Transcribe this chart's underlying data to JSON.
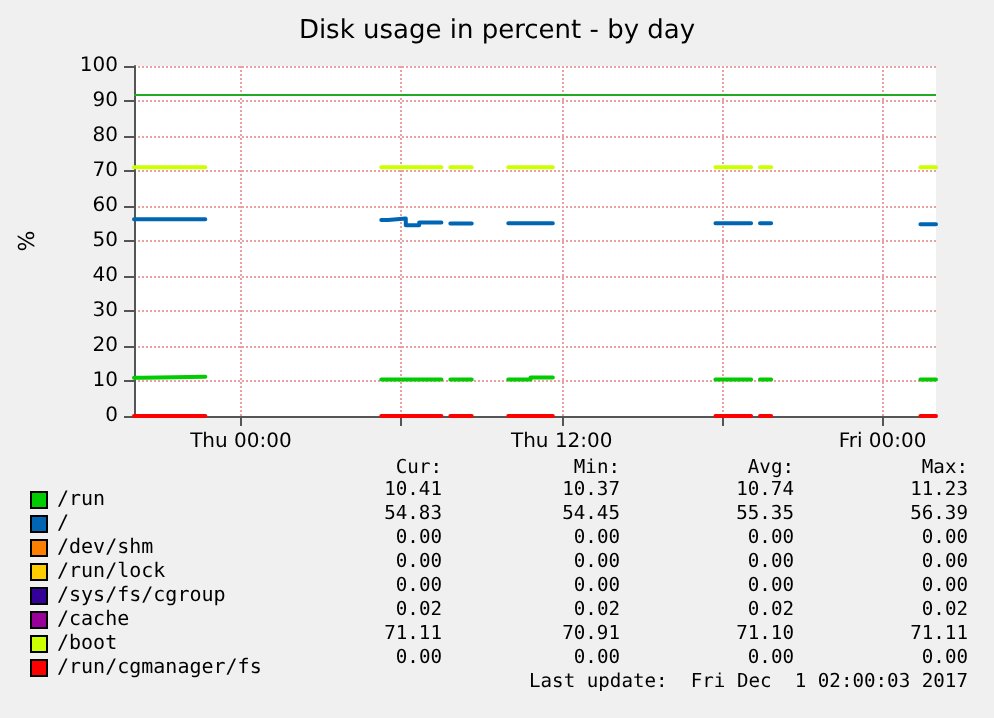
{
  "chart_data": {
    "type": "line",
    "title": "Disk usage in percent - by day",
    "ylabel": "%",
    "x": [
      "2017-11-29T20:00",
      "2017-11-29T22:40",
      "2017-11-30T02:00",
      "2017-11-30T05:15",
      "2017-11-30T07:30",
      "2017-11-30T07:40",
      "2017-11-30T07:50",
      "2017-11-30T08:38",
      "2017-11-30T09:00",
      "2017-11-30T10:00",
      "2017-11-30T11:40",
      "2017-11-30T15:00",
      "2017-11-30T17:45",
      "2017-11-30T19:05",
      "2017-11-30T19:15",
      "2017-11-30T19:25",
      "2017-11-30T19:50",
      "2017-11-30T22:00",
      "2017-12-01T01:25",
      "2017-12-01T02:00"
    ],
    "series": [
      {
        "name": "/run",
        "color": "#00cc00",
        "x": [
          "2017-11-29T20:00",
          "2017-11-29T20:20",
          "2017-11-29T20:20",
          "2017-11-29T22:40",
          "2017-11-30T02:00",
          "2017-11-30T05:15",
          "2017-11-30T07:30",
          "2017-11-30T07:40",
          "2017-11-30T07:50",
          "2017-11-30T08:38",
          "2017-11-30T09:00",
          "2017-11-30T10:00",
          "2017-11-30T10:50",
          "2017-11-30T10:50",
          "2017-11-30T11:40",
          "2017-11-30T15:00",
          "2017-11-30T17:45",
          "2017-11-30T19:05",
          "2017-11-30T19:15",
          "2017-11-30T19:25",
          "2017-11-30T19:50",
          "2017-11-30T22:00",
          "2017-12-01T01:25",
          "2017-12-01T02:00"
        ],
        "values": [
          10.9,
          10.9,
          11.2,
          11.2,
          null,
          10.4,
          10.4,
          null,
          10.4,
          10.4,
          null,
          10.4,
          10.4,
          11.0,
          11.0,
          null,
          10.4,
          10.4,
          null,
          10.4,
          10.4,
          null,
          10.4,
          10.4
        ]
      },
      {
        "name": "/",
        "color": "#0066b3",
        "x": [
          "2017-11-29T20:00",
          "2017-11-29T22:40",
          "2017-11-30T02:00",
          "2017-11-30T05:15",
          "2017-11-30T05:30",
          "2017-11-30T05:30",
          "2017-11-30T06:10",
          "2017-11-30T06:10",
          "2017-11-30T06:40",
          "2017-11-30T06:40",
          "2017-11-30T07:30",
          "2017-11-30T07:40",
          "2017-11-30T07:50",
          "2017-11-30T08:38",
          "2017-11-30T09:00",
          "2017-11-30T10:00",
          "2017-11-30T11:40",
          "2017-11-30T15:00",
          "2017-11-30T17:45",
          "2017-11-30T19:05",
          "2017-11-30T19:15",
          "2017-11-30T19:25",
          "2017-11-30T19:50",
          "2017-11-30T22:00",
          "2017-12-01T01:25",
          "2017-12-01T02:00"
        ],
        "values": [
          56.2,
          56.2,
          null,
          56.0,
          56.0,
          56.4,
          56.4,
          54.5,
          54.5,
          55.3,
          55.3,
          null,
          55.0,
          55.0,
          null,
          55.1,
          55.1,
          null,
          55.1,
          55.1,
          null,
          55.1,
          55.1,
          null,
          54.8,
          54.8
        ]
      },
      {
        "name": "/dev/shm",
        "color": "#ff8000",
        "values": [
          null,
          null,
          null,
          null,
          null,
          null,
          null,
          null,
          null,
          null,
          null,
          null,
          null,
          null,
          null,
          null,
          null,
          null,
          null,
          null
        ]
      },
      {
        "name": "/run/lock",
        "color": "#ffcc00",
        "values": [
          null,
          null,
          null,
          null,
          null,
          null,
          null,
          null,
          null,
          null,
          null,
          null,
          null,
          null,
          null,
          null,
          null,
          null,
          null,
          null
        ]
      },
      {
        "name": "/sys/fs/cgroup",
        "color": "#330099",
        "values": [
          null,
          null,
          null,
          null,
          null,
          null,
          null,
          null,
          null,
          null,
          null,
          null,
          null,
          null,
          null,
          null,
          null,
          null,
          null,
          null
        ]
      },
      {
        "name": "/cache",
        "color": "#990099",
        "values": [
          null,
          null,
          null,
          null,
          null,
          null,
          null,
          null,
          null,
          null,
          null,
          null,
          null,
          null,
          null,
          null,
          null,
          null,
          null,
          null
        ]
      },
      {
        "name": "/boot",
        "color": "#ccff00",
        "values": [
          71.1,
          71.1,
          null,
          71.1,
          71.1,
          null,
          71.1,
          71.1,
          null,
          71.1,
          71.1,
          null,
          71.1,
          71.1,
          null,
          71.1,
          71.1,
          null,
          71.1,
          71.1
        ]
      },
      {
        "name": "/run/cgmanager/fs",
        "color": "#ff0000",
        "values": [
          0,
          0,
          null,
          0,
          0,
          null,
          0,
          0,
          null,
          0,
          0,
          null,
          0,
          0,
          null,
          0,
          0,
          null,
          0,
          0
        ]
      }
    ],
    "xlim": [
      "2017-11-29T20:00",
      "2017-12-01T02:00"
    ],
    "xticks": [
      {
        "value": "2017-11-30T00:00",
        "label": "Thu 00:00"
      },
      {
        "value": "2017-11-30T06:00",
        "label": null
      },
      {
        "value": "2017-11-30T12:00",
        "label": "Thu 12:00"
      },
      {
        "value": "2017-11-30T18:00",
        "label": null
      },
      {
        "value": "2017-12-01T00:00",
        "label": "Fri 00:00"
      }
    ],
    "ylim": [
      0,
      100
    ],
    "yticks": [
      0,
      10,
      20,
      30,
      40,
      50,
      60,
      70,
      80,
      90,
      100
    ],
    "ref_lines": [
      {
        "axis": "y",
        "value": 92,
        "color": "#22aa22"
      }
    ],
    "grid": true,
    "legend": "bottom left",
    "annotations": [
      "Cur:",
      "Min:",
      "Avg:",
      "Max:",
      "10.41",
      "10.37",
      "10.74",
      "11.23",
      "54.83",
      "54.45",
      "55.35",
      "56.39",
      "0.00",
      "0.00",
      "0.00",
      "0.00",
      "0.00",
      "0.00",
      "0.00",
      "0.00",
      "0.00",
      "0.00",
      "0.00",
      "0.00",
      "0.02",
      "0.02",
      "0.02",
      "0.02",
      "71.11",
      "70.91",
      "71.10",
      "71.11",
      "0.00",
      "0.00",
      "0.00",
      "0.00",
      "Last update:  Fri Dec  1 02:00:03 2017"
    ]
  }
}
